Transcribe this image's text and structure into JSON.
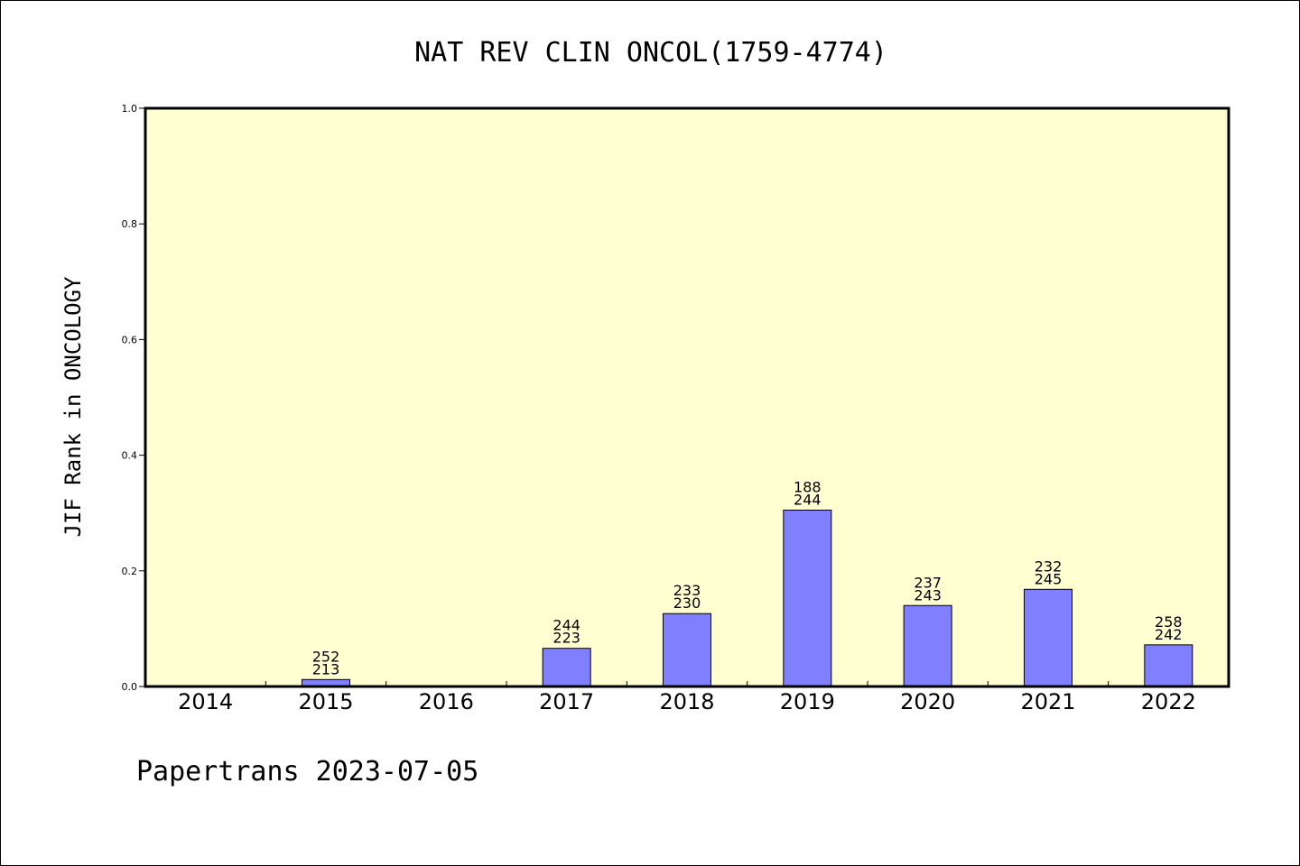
{
  "chart_data": {
    "type": "bar",
    "title": "NAT REV CLIN ONCOL(1759-4774)",
    "xlabel": "",
    "ylabel": "JIF Rank in ONCOLOGY",
    "ylim": [
      0.0,
      1.0
    ],
    "yticks": [
      "0.0",
      "0.2",
      "0.4",
      "0.6",
      "0.8",
      "1.0"
    ],
    "categories": [
      "2014",
      "2015",
      "2016",
      "2017",
      "2018",
      "2019",
      "2020",
      "2021",
      "2022"
    ],
    "values": [
      null,
      0.012,
      null,
      0.066,
      0.126,
      0.305,
      0.14,
      0.168,
      0.072
    ],
    "labels_top": [
      "",
      "252",
      "",
      "244",
      "233",
      "188",
      "237",
      "232",
      "258"
    ],
    "labels_bottom": [
      "",
      "213",
      "",
      "223",
      "230",
      "244",
      "243",
      "245",
      "242"
    ],
    "grid": false,
    "colors": {
      "plot_background": "#ffffd2",
      "bar": "#8080ff",
      "axis": "#000000"
    }
  },
  "footer": "Papertrans 2023-07-05"
}
